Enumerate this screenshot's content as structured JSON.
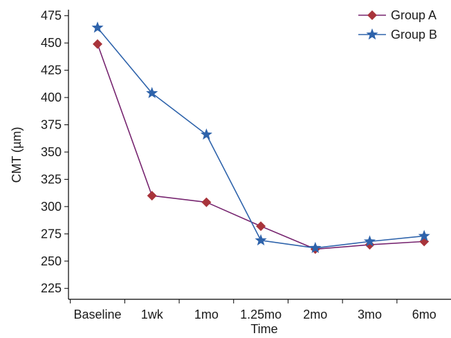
{
  "chart_data": {
    "type": "line",
    "title": "",
    "xlabel": "Time",
    "ylabel": "CMT (µm)",
    "categories": [
      "Baseline",
      "1wk",
      "1mo",
      "1.25mo",
      "2mo",
      "3mo",
      "6mo"
    ],
    "yticks": [
      225,
      250,
      275,
      300,
      325,
      350,
      375,
      400,
      425,
      450,
      475
    ],
    "ylim": [
      215,
      478
    ],
    "grid": false,
    "legend_position": "top-right",
    "series": [
      {
        "name": "Group A",
        "values": [
          449,
          310,
          304,
          282,
          261,
          265,
          268
        ],
        "color": "#76246f",
        "marker_color": "#a8343b",
        "marker": "diamond"
      },
      {
        "name": "Group B",
        "values": [
          464,
          404,
          366,
          269,
          262,
          268,
          273
        ],
        "color": "#2e63ab",
        "marker_color": "#2e63ab",
        "marker": "star"
      }
    ]
  }
}
